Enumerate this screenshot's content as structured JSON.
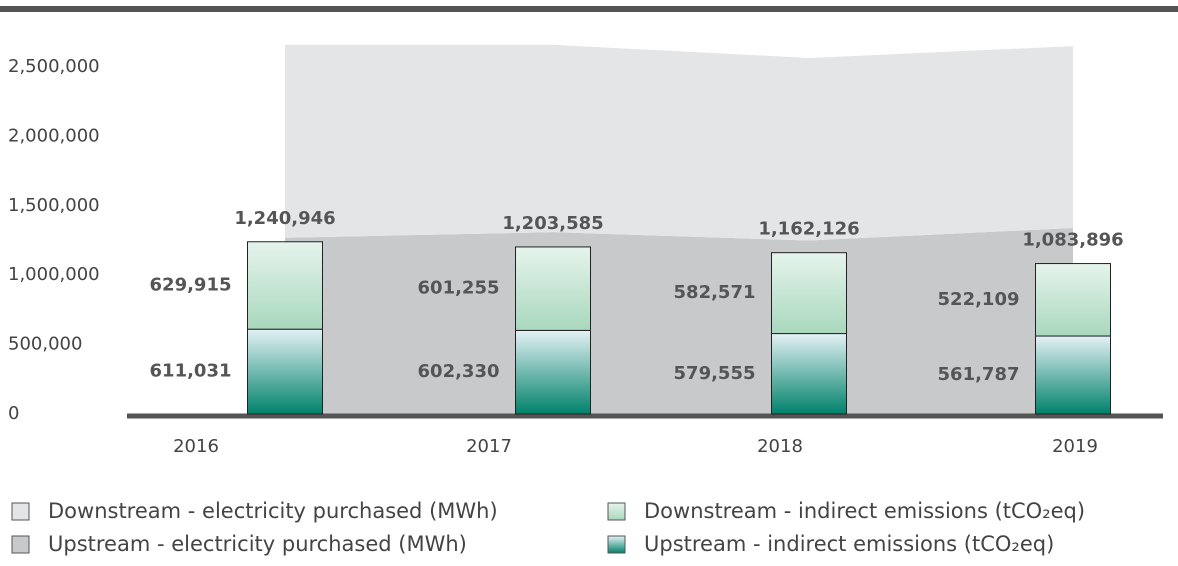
{
  "chart_data": {
    "type": "bar",
    "categories": [
      "2016",
      "2017",
      "2018",
      "2019"
    ],
    "series": [
      {
        "name": "Upstream - electricity purchased (MWh)",
        "type": "area",
        "color": "#c8c9cb",
        "values": [
          1270000,
          1310000,
          1250000,
          1340000
        ]
      },
      {
        "name": "Downstream - electricity purchased (MWh)",
        "type": "area",
        "color": "#e4e5e6",
        "values": [
          1390000,
          1350000,
          1315000,
          1310000
        ]
      },
      {
        "name": "Upstream - indirect emissions (tCO₂eq)",
        "type": "bar",
        "color": "#00826a",
        "values": [
          611031,
          602330,
          579555,
          561787
        ],
        "value_labels": [
          "611,031",
          "602,330",
          "579,555",
          "561,787"
        ]
      },
      {
        "name": "Downstream - indirect emissions (tCO₂eq)",
        "type": "bar",
        "color": "#a8d8bd",
        "values": [
          629915,
          601255,
          582571,
          522109
        ],
        "value_labels": [
          "629,915",
          "601,255",
          "582,571",
          "522,109"
        ]
      }
    ],
    "totals": [
      1240946,
      1203585,
      1162126,
      1083896
    ],
    "total_labels": [
      "1,240,946",
      "1,203,585",
      "1,162,126",
      "1,083,896"
    ],
    "ylim": [
      0,
      2500000
    ],
    "yticks": [
      0,
      {
        "value": 500000,
        "label": "500,000"
      },
      {
        "value": 1000000,
        "label": "1,000,000"
      },
      {
        "value": 1500000,
        "label": "1,500,000"
      },
      {
        "value": 2000000,
        "label": "2,000,000"
      },
      {
        "value": 2500000,
        "label": "2,500,000"
      }
    ],
    "grid": false
  }
}
